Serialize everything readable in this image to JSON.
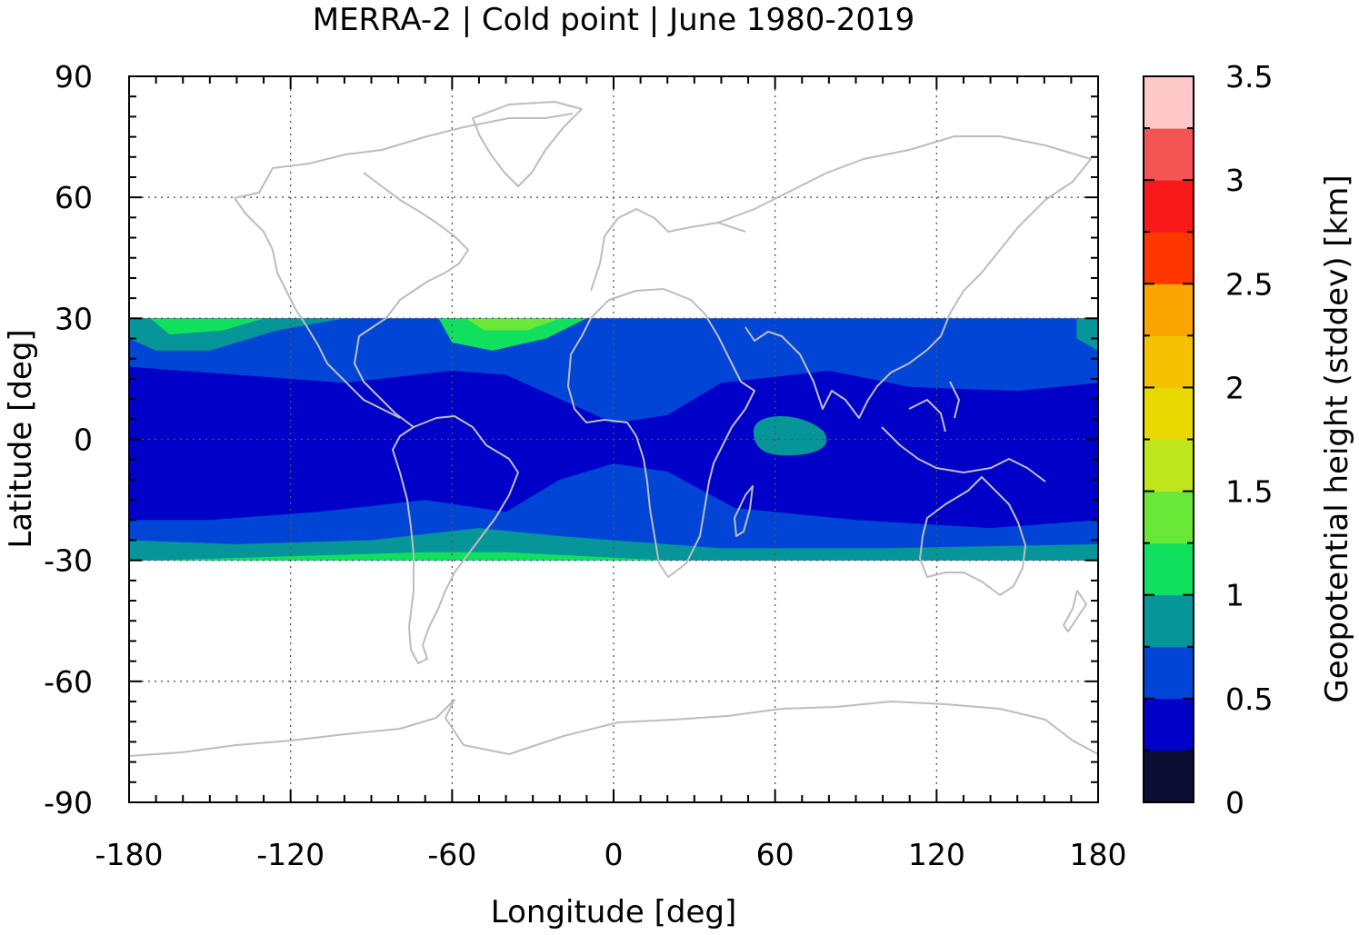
{
  "chart_data": {
    "type": "heatmap",
    "title": "MERRA-2 | Cold point | June 1980-2019",
    "xlabel": "Longitude [deg]",
    "ylabel": "Latitude [deg]",
    "xlim": [
      -180,
      180
    ],
    "ylim": [
      -90,
      90
    ],
    "x_ticks": [
      "-180",
      "-120",
      "-60",
      "0",
      "60",
      "120",
      "180"
    ],
    "y_ticks": [
      "90",
      "60",
      "30",
      "0",
      "-30",
      "-60",
      "-90"
    ],
    "data_lat_range": [
      -30,
      30
    ],
    "grid": true,
    "colorbar": {
      "label": "Geopotential height (stddev) [km]",
      "range": [
        0,
        3.5
      ],
      "step": 0.25,
      "tick_labels": [
        "0",
        "0.5",
        "1",
        "1.5",
        "2",
        "2.5",
        "3",
        "3.5"
      ],
      "colors": [
        "#0c0f33",
        "#0000c8",
        "#0045d6",
        "#06969a",
        "#11e05f",
        "#6ae838",
        "#bfe61c",
        "#e8d900",
        "#f4c200",
        "#fba500",
        "#ff3600",
        "#f81a1a",
        "#f45454",
        "#ffc8c8"
      ]
    },
    "field_levels": {
      "background_stddev_km": 0.375,
      "regions": [
        {
          "description": "subtropical band 15-30 N",
          "stddev_km": 0.625
        },
        {
          "description": "subtropical band 15-30 S",
          "stddev_km": 0.625
        },
        {
          "description": "North Pacific 25-30 N",
          "stddev_km": 0.875
        },
        {
          "description": "North Pacific 27-30 N, 170-150 W",
          "stddev_km": 1.125
        },
        {
          "description": "North Atlantic 25-30 N",
          "stddev_km": 1.125
        },
        {
          "description": "North Atlantic core 27-30 N, 55-30 W",
          "stddev_km": 1.375
        },
        {
          "description": "Indian Ocean equatorial 5 S-5 N, 50-80 E",
          "stddev_km": 0.875
        },
        {
          "description": "southern edge 27-30 S",
          "stddev_km": 0.875
        },
        {
          "description": "southern edge 28-30 S, South America / Atlantic",
          "stddev_km": 1.125
        }
      ]
    },
    "map_overlay": "coastlines",
    "coastline_color": "#bdbdbd"
  }
}
